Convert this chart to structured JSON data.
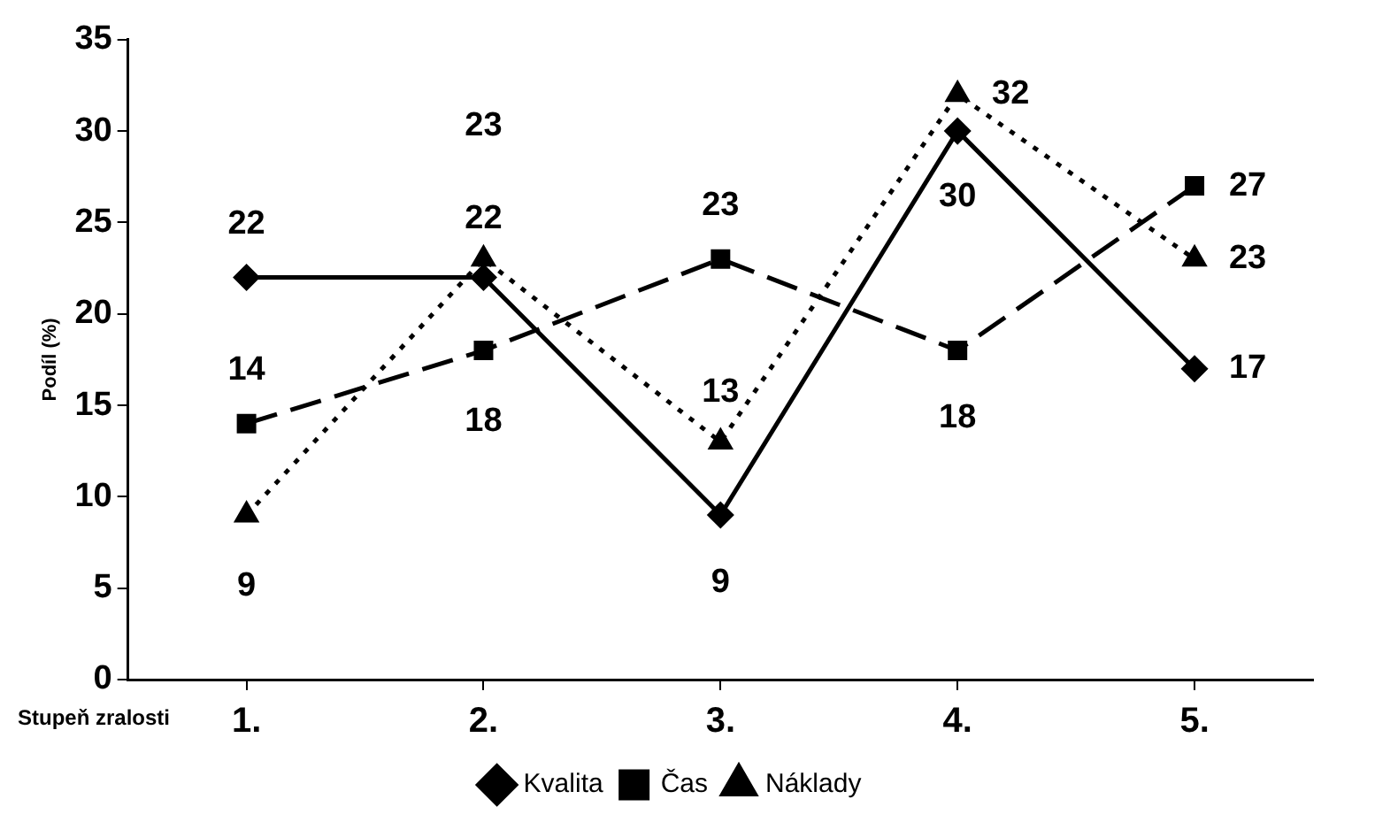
{
  "chart_data": {
    "type": "line",
    "xlabel": "Stupeň zralosti",
    "ylabel": "Podíl (%)",
    "categories": [
      "1.",
      "2.",
      "3.",
      "4.",
      "5."
    ],
    "series": [
      {
        "name": "Kvalita",
        "color": "#000000",
        "values": [
          22,
          22,
          9,
          30,
          17
        ],
        "marker": "diamond",
        "line_style": "solid"
      },
      {
        "name": "Čas",
        "color": "#000000",
        "values": [
          14,
          18,
          23,
          18,
          27
        ],
        "marker": "square",
        "line_style": "dashed"
      },
      {
        "name": "Náklady",
        "color": "#000000",
        "values": [
          9,
          23,
          13,
          32,
          23
        ],
        "marker": "triangle",
        "line_style": "dotted"
      }
    ],
    "ylim": [
      0,
      35
    ],
    "yticks": [
      0,
      5,
      10,
      15,
      20,
      25,
      30,
      35
    ],
    "grid": false,
    "legend": "bottom",
    "data_labels": true
  }
}
